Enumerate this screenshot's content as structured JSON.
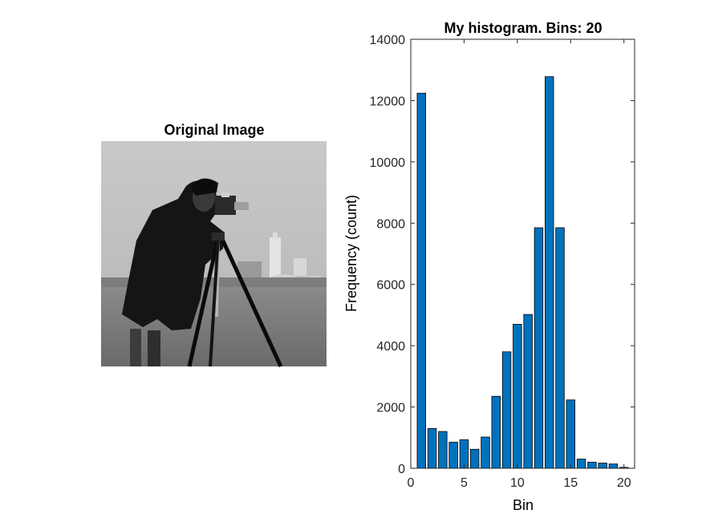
{
  "left_panel": {
    "title": "Original Image",
    "image_description_icon": "photo-of-cameraman-with-tripod-camera-grayscale"
  },
  "chart_data": {
    "type": "bar",
    "title": "My histogram. Bins: 20",
    "xlabel": "Bin",
    "ylabel": "Frequency (count)",
    "x": [
      1,
      2,
      3,
      4,
      5,
      6,
      7,
      8,
      9,
      10,
      11,
      12,
      13,
      14,
      15,
      16,
      17,
      18,
      19,
      20
    ],
    "values": [
      12240,
      1300,
      1200,
      850,
      930,
      620,
      1020,
      2350,
      3800,
      4700,
      5020,
      7850,
      12780,
      7850,
      2230,
      300,
      200,
      170,
      140,
      30
    ],
    "xlim": [
      0,
      21
    ],
    "ylim": [
      0,
      14000
    ],
    "xticks": [
      0,
      5,
      10,
      15,
      20
    ],
    "yticks": [
      0,
      2000,
      4000,
      6000,
      8000,
      10000,
      12000,
      14000
    ],
    "grid": false,
    "bar_color": "#0072BD",
    "edge_color": "#000000"
  }
}
